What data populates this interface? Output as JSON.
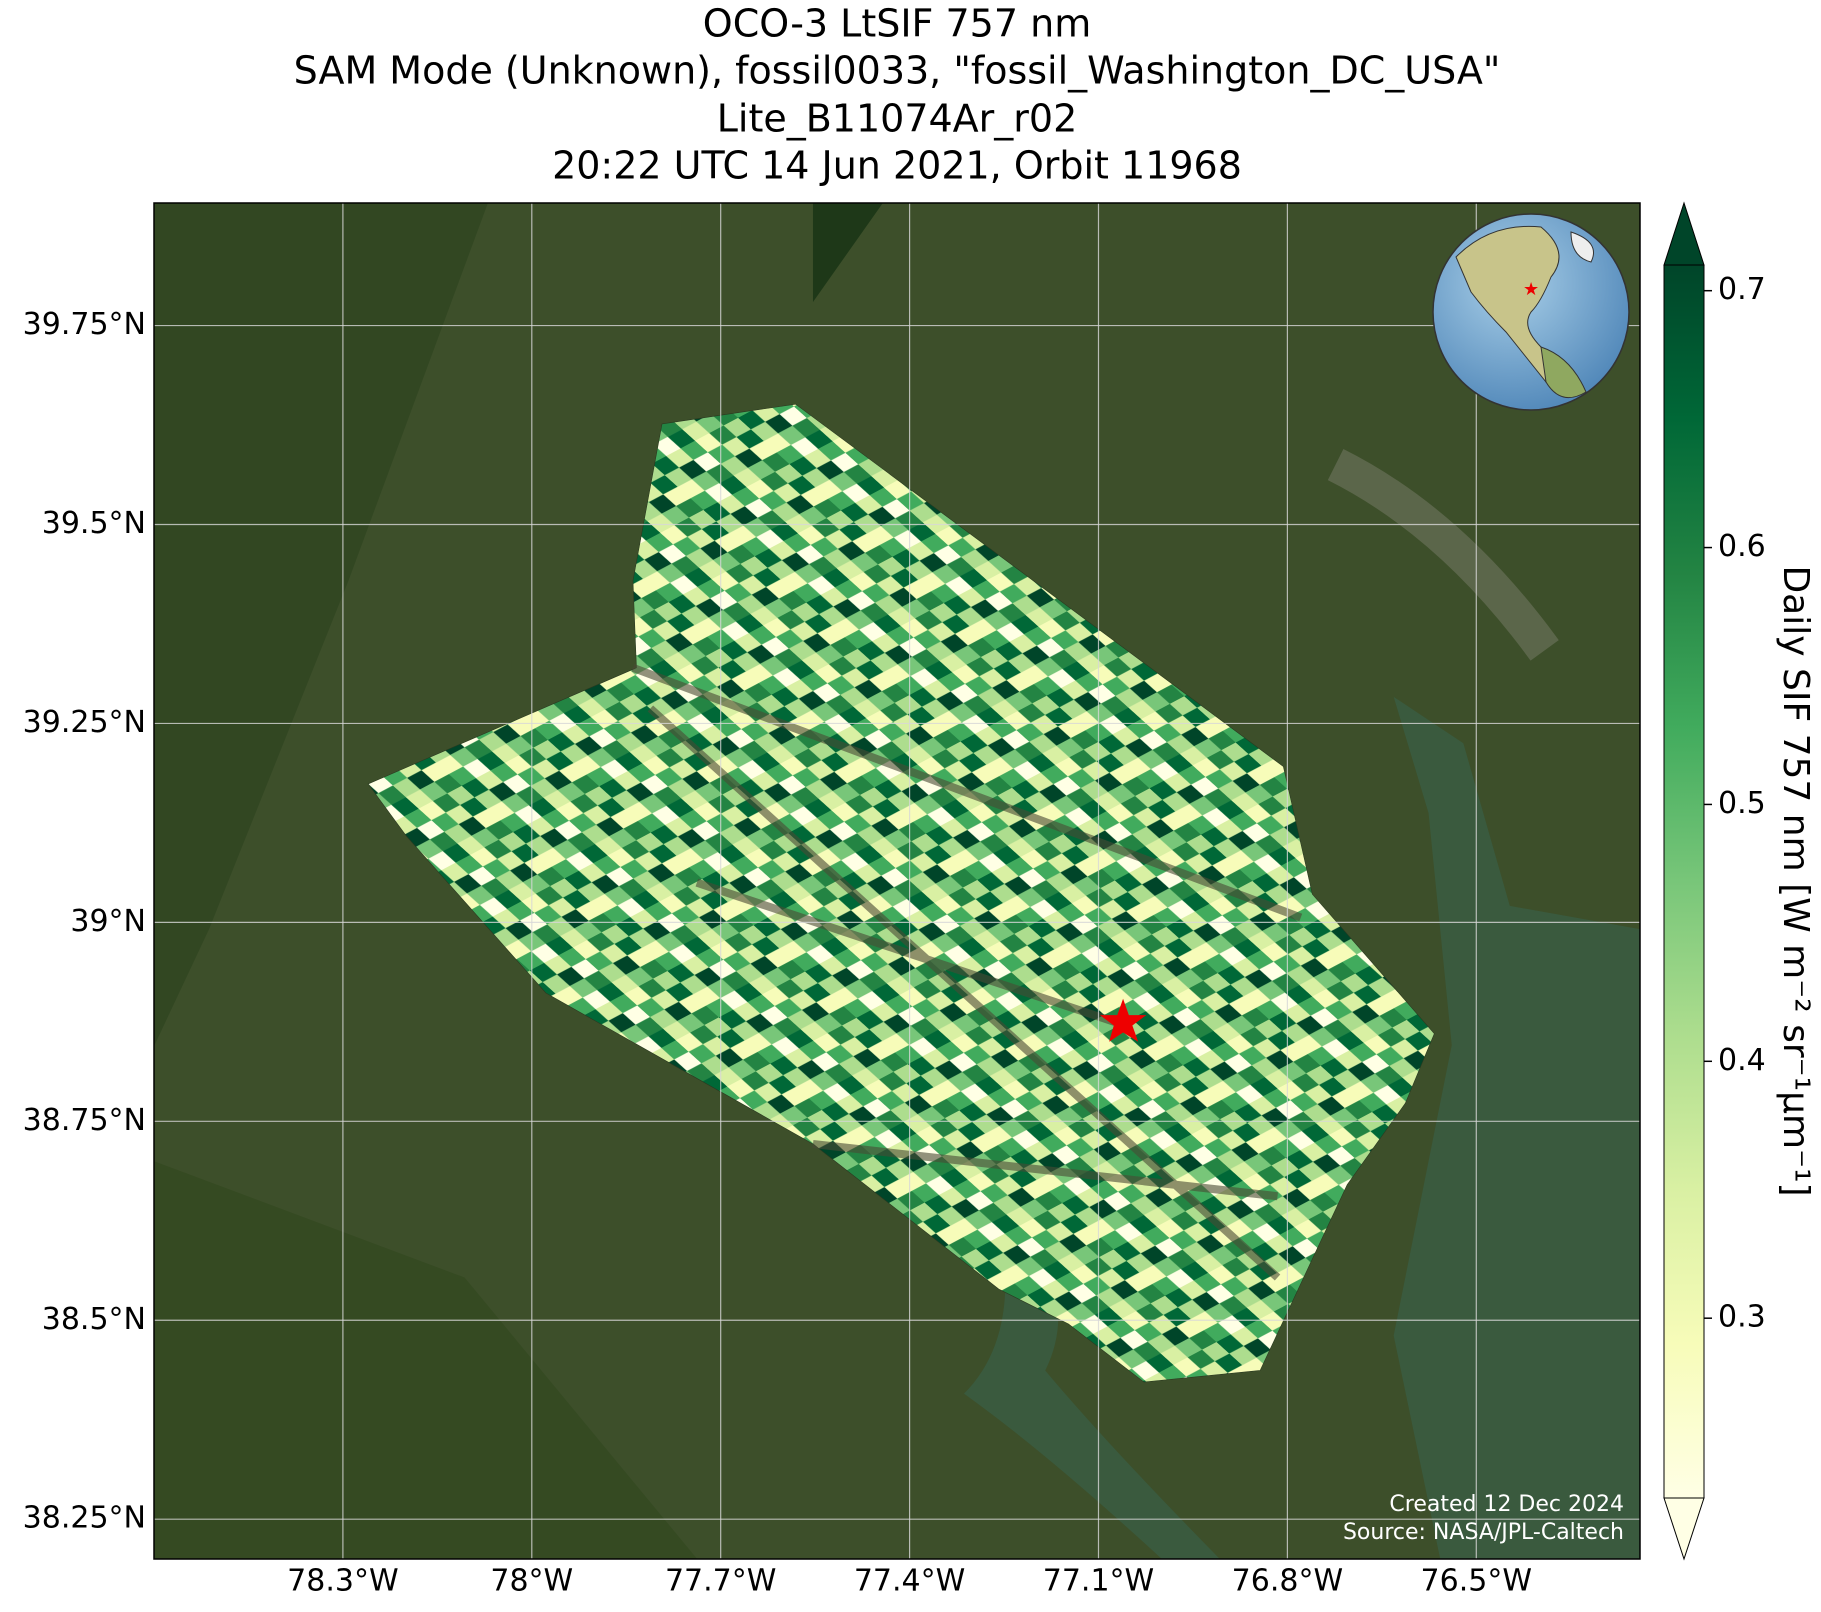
{
  "chart_data": {
    "type": "map",
    "title": [
      "OCO-3 LtSIF 757 nm",
      "SAM Mode (Unknown), fossil0033, \"fossil_Washington_DC_USA\"",
      "Lite_B11074Ar_r02",
      "20:22 UTC 14 Jun 2021, Orbit 11968"
    ],
    "xlim": [
      -78.6,
      -76.24
    ],
    "ylim": [
      38.2,
      39.904
    ],
    "xticks": [
      {
        "value": -78.3,
        "label": "78.3°W"
      },
      {
        "value": -78.0,
        "label": "78°W"
      },
      {
        "value": -77.7,
        "label": "77.7°W"
      },
      {
        "value": -77.4,
        "label": "77.4°W"
      },
      {
        "value": -77.1,
        "label": "77.1°W"
      },
      {
        "value": -76.8,
        "label": "76.8°W"
      },
      {
        "value": -76.5,
        "label": "76.5°W"
      }
    ],
    "yticks": [
      {
        "value": 38.25,
        "label": "38.25°N"
      },
      {
        "value": 38.5,
        "label": "38.5°N"
      },
      {
        "value": 38.75,
        "label": "38.75°N"
      },
      {
        "value": 39.0,
        "label": "39°N"
      },
      {
        "value": 39.25,
        "label": "39.25°N"
      },
      {
        "value": 39.5,
        "label": "39.5°N"
      },
      {
        "value": 39.75,
        "label": "39.75°N"
      }
    ],
    "grid": true,
    "colorbar": {
      "label": "Daily SIF 757 nm [W m⁻² sr⁻¹μm⁻¹]",
      "lim": [
        0.23,
        0.71
      ],
      "ticks": [
        0.3,
        0.4,
        0.5,
        0.6,
        0.7
      ],
      "colors": [
        "#ffffe5",
        "#f7fcb9",
        "#d9f0a3",
        "#addd8e",
        "#78c679",
        "#41ab5d",
        "#238443",
        "#006837",
        "#004529"
      ]
    },
    "credits": [
      "Created 12 Dec 2024",
      "Source: NASA/JPL-Caltech"
    ]
  }
}
